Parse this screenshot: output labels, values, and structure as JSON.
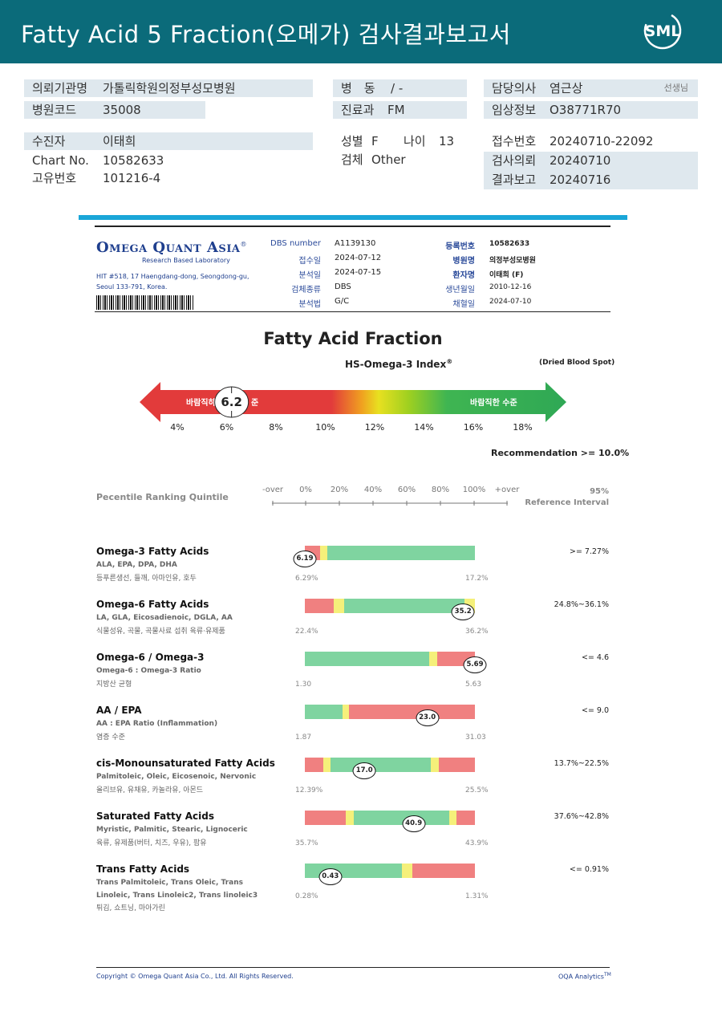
{
  "header": {
    "title": "Fatty Acid 5 Fraction(오메가) 검사결과보고서",
    "logo_text": "SML"
  },
  "info": {
    "institution": {
      "label": "의뢰기관명",
      "value": "가톨릭학원의정부성모병원"
    },
    "hospital_code": {
      "label": "병원코드",
      "value": "35008"
    },
    "ward": {
      "label": "병　동",
      "value": "/ -"
    },
    "dept": {
      "label": "진료과",
      "value": "FM"
    },
    "doctor": {
      "label": "담당의사",
      "value": "염근상",
      "suffix": "선생님"
    },
    "clinical": {
      "label": "임상정보",
      "value": "O38771R70"
    },
    "patient": {
      "label": "수진자",
      "value": "이태희"
    },
    "chart_no": {
      "label": "Chart No.",
      "value": "10582633"
    },
    "unique_no": {
      "label": "고유번호",
      "value": "101216-4"
    },
    "sex": {
      "label": "성별",
      "value": "F"
    },
    "age": {
      "label": "나이",
      "value": "13"
    },
    "specimen": {
      "label": "검체",
      "value": "Other"
    },
    "receipt_no": {
      "label": "접수번호",
      "value": "20240710-22092"
    },
    "request_date": {
      "label": "검사의뢰",
      "value": "20240710"
    },
    "report_date": {
      "label": "결과보고",
      "value": "20240716"
    }
  },
  "lab": {
    "name_part1": "Omega Quant Asia",
    "reg": "®",
    "subtitle": "Research Based Laboratory",
    "address": "HIT #518, 17 Haengdang-dong, Seongdong-gu, Seoul 133-791, Korea.",
    "meta": [
      {
        "label": "DBS number",
        "value": "A1139130"
      },
      {
        "label": "접수일",
        "value": "2024-07-12"
      },
      {
        "label": "분석일",
        "value": "2024-07-15"
      },
      {
        "label": "검체종류",
        "value": "DBS"
      },
      {
        "label": "분석법",
        "value": "G/C"
      }
    ],
    "patient_meta": [
      {
        "label": "등록번호",
        "value": "10582633",
        "bold": true
      },
      {
        "label": "병원명",
        "value": "의정부성모병원",
        "bold": true
      },
      {
        "label": "환자명",
        "value": "이태희 (F)",
        "bold": true
      },
      {
        "label": "생년월일",
        "value": "2010-12-16",
        "bold": false
      },
      {
        "label": "채혈일",
        "value": "2024-07-10",
        "bold": false
      }
    ]
  },
  "index": {
    "title": "Fatty Acid Fraction",
    "subtitle": "HS-Omega-3 Index",
    "subtitle_reg": "®",
    "dried": "(Dried Blood Spot)",
    "value": "6.2",
    "value_num": 6.2,
    "left_label": "바람직하",
    "left_label_tail": "준",
    "right_label": "바람직한 수준",
    "ticks": [
      "4%",
      "6%",
      "8%",
      "10%",
      "12%",
      "14%",
      "16%",
      "18%"
    ],
    "recommendation": "Recommendation  >= 10.0%"
  },
  "percentile": {
    "label": "Pecentile Ranking Quintile",
    "ticks": [
      "-over",
      "0%",
      "20%",
      "40%",
      "60%",
      "80%",
      "100%",
      "+over"
    ],
    "ref_title_1": "95%",
    "ref_title_2": "Reference Interval"
  },
  "colors": {
    "red": "#f08080",
    "yellow": "#f5f07a",
    "green": "#7fd4a0",
    "teal": "#0b6b7a",
    "blue": "#1aa6d8"
  },
  "rows": [
    {
      "name": "Omega-3 Fatty Acids",
      "sub": "ALA, EPA, DPA, DHA",
      "kor": "등푸른생선, 들깨, 아마인유, 호두",
      "min": "6.29%",
      "max": "17.2%",
      "ref": ">= 7.27%",
      "value": "6.19",
      "marker": 0,
      "segments": [
        [
          "red",
          9
        ],
        [
          "yellow",
          4
        ],
        [
          "green",
          87
        ]
      ]
    },
    {
      "name": "Omega-6 Fatty Acids",
      "sub": "LA, GLA, Eicosadienoic, DGLA, AA",
      "kor": "식물성유, 곡물, 곡물사료 섭취 육류·유제품",
      "min": "22.4%",
      "max": "36.2%",
      "ref": "24.8%~36.1%",
      "value": "35.2",
      "marker": 93,
      "segments": [
        [
          "red",
          17
        ],
        [
          "yellow",
          6
        ],
        [
          "green",
          71
        ],
        [
          "yellow",
          6
        ]
      ]
    },
    {
      "name": "Omega-6 / Omega-3",
      "sub": "Omega-6 : Omega-3 Ratio",
      "kor": "지방산 균형",
      "min": "1.30",
      "max": "5.63",
      "ref": "<= 4.6",
      "value": "5.69",
      "marker": 100,
      "segments": [
        [
          "green",
          73
        ],
        [
          "yellow",
          5
        ],
        [
          "red",
          22
        ]
      ]
    },
    {
      "name": "AA / EPA",
      "sub": "AA : EPA Ratio (Inflammation)",
      "kor": "염증 수준",
      "min": "1.87",
      "max": "31.03",
      "ref": "<= 9.0",
      "value": "23.0",
      "marker": 72,
      "segments": [
        [
          "green",
          22
        ],
        [
          "yellow",
          4
        ],
        [
          "red",
          74
        ]
      ]
    },
    {
      "name": "cis-Monounsaturated Fatty Acids",
      "sub": "Palmitoleic, Oleic, Eicosenoic, Nervonic",
      "kor": "올리브유, 유채유, 카놀라유, 아몬드",
      "min": "12.39%",
      "max": "25.5%",
      "ref": "13.7%~22.5%",
      "value": "17.0",
      "marker": 35,
      "segments": [
        [
          "red",
          11
        ],
        [
          "yellow",
          4
        ],
        [
          "green",
          59
        ],
        [
          "yellow",
          5
        ],
        [
          "red",
          21
        ]
      ]
    },
    {
      "name": "Saturated Fatty Acids",
      "sub": "Myristic, Palmitic, Stearic, Lignoceric",
      "kor": "육류, 유제품(버터, 치즈, 우유), 팜유",
      "min": "35.7%",
      "max": "43.9%",
      "ref": "37.6%~42.8%",
      "value": "40.9",
      "marker": 64,
      "segments": [
        [
          "red",
          24
        ],
        [
          "yellow",
          5
        ],
        [
          "green",
          56
        ],
        [
          "yellow",
          4
        ],
        [
          "red",
          11
        ]
      ]
    },
    {
      "name": "Trans Fatty Acids",
      "sub": "Trans Palmitoleic, Trans Oleic, Trans Linoleic, Trans Linoleic2, Trans linoleic3",
      "kor": "튀김, 쇼트닝, 마아가린",
      "min": "0.28%",
      "max": "1.31%",
      "ref": "<= 0.91%",
      "value": "0.43",
      "marker": 15,
      "segments": [
        [
          "green",
          57
        ],
        [
          "yellow",
          6
        ],
        [
          "red",
          37
        ]
      ]
    }
  ],
  "footer": {
    "copyright": "Copyright © Omega Quant Asia Co., Ltd.  All Rights Reserved.",
    "brand": "OQA Analytics",
    "brand_tm": "TM"
  }
}
